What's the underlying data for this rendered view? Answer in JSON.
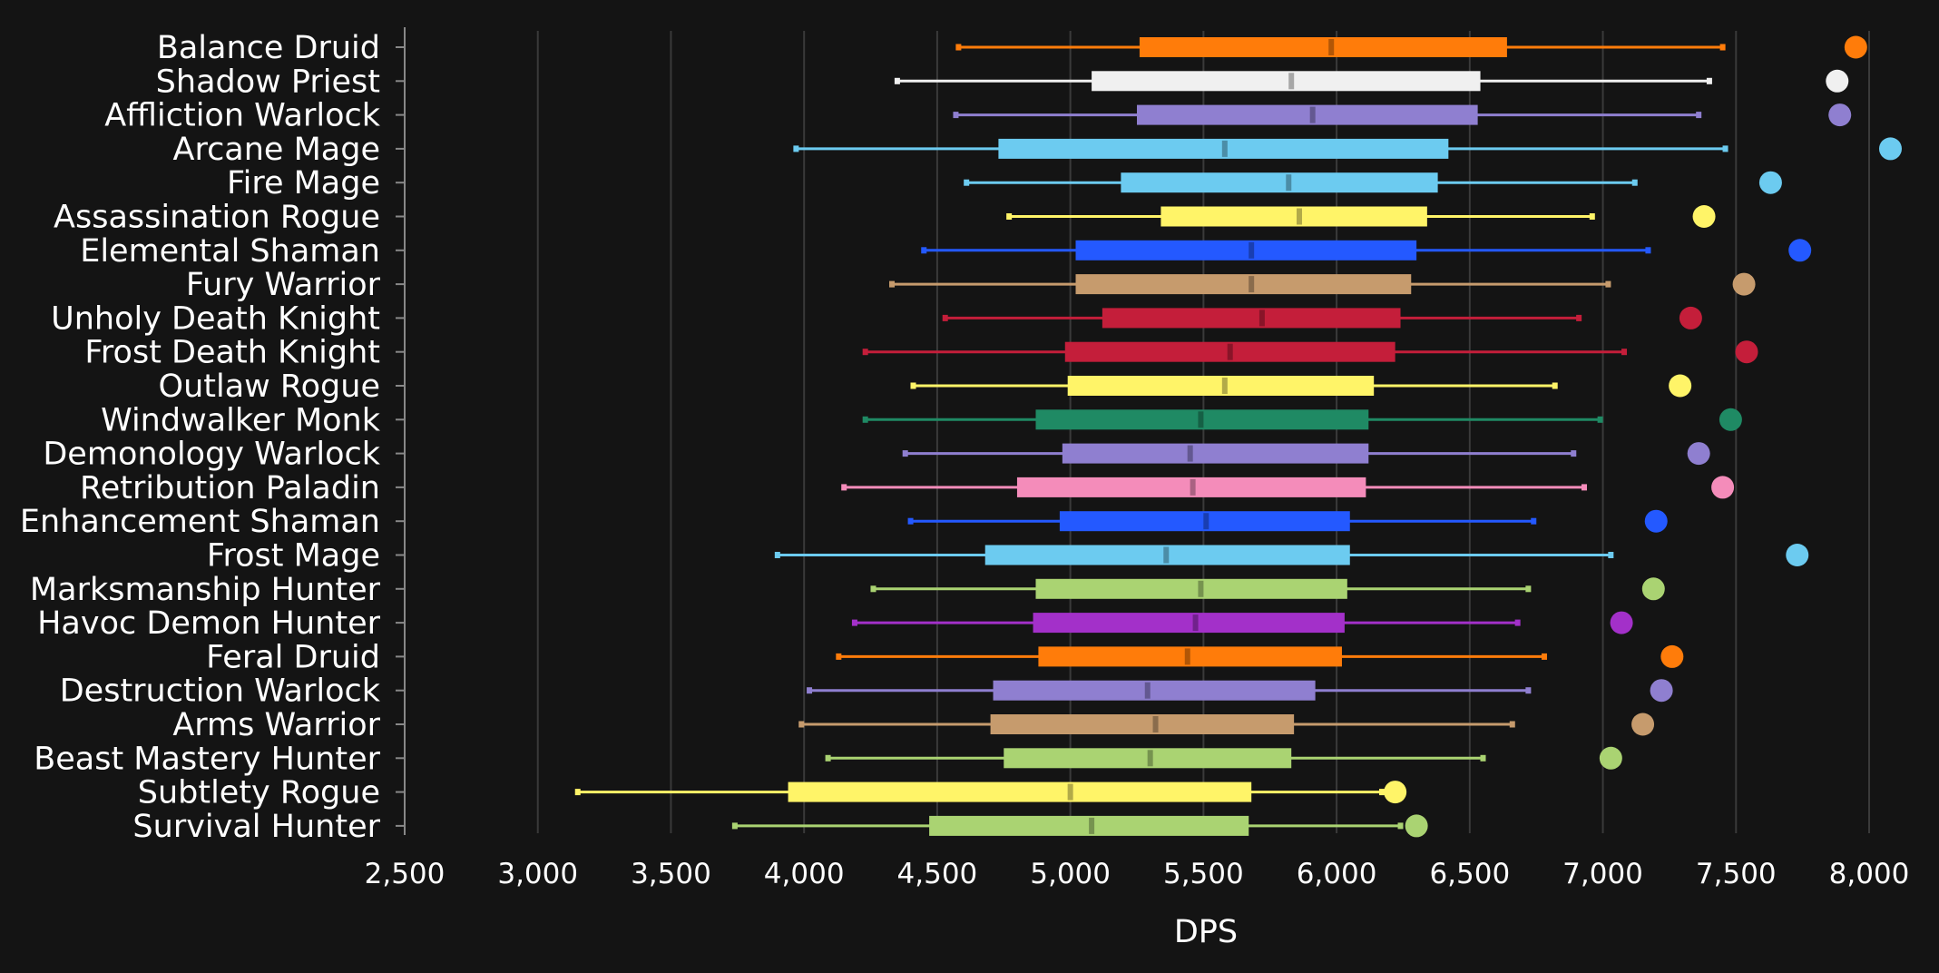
{
  "chart_data": {
    "type": "box",
    "xlabel": "DPS",
    "xlim": [
      2500,
      8000
    ],
    "xticks": [
      2500,
      3000,
      3500,
      4000,
      4500,
      5000,
      5500,
      6000,
      6500,
      7000,
      7500,
      8000
    ],
    "xtick_labels": [
      "2,500",
      "3,000",
      "3,500",
      "4,000",
      "4,500",
      "5,000",
      "5,500",
      "6,000",
      "6,500",
      "7,000",
      "7,500",
      "8,000"
    ],
    "grid": true,
    "series": [
      {
        "name": "Balance Druid",
        "color": "#ff7c0a",
        "min": 4580,
        "q1": 5260,
        "median": 5980,
        "q3": 6640,
        "max": 7450,
        "dot": 7950
      },
      {
        "name": "Shadow Priest",
        "color": "#f0f0f0",
        "min": 4350,
        "q1": 5080,
        "median": 5830,
        "q3": 6540,
        "max": 7400,
        "dot": 7880
      },
      {
        "name": "Affliction Warlock",
        "color": "#8f7fd0",
        "min": 4570,
        "q1": 5250,
        "median": 5910,
        "q3": 6530,
        "max": 7360,
        "dot": 7890
      },
      {
        "name": "Arcane Mage",
        "color": "#6ccbf0",
        "min": 3970,
        "q1": 4730,
        "median": 5580,
        "q3": 6420,
        "max": 7460,
        "dot": 8080
      },
      {
        "name": "Fire Mage",
        "color": "#6ccbf0",
        "min": 4610,
        "q1": 5190,
        "median": 5820,
        "q3": 6380,
        "max": 7120,
        "dot": 7630
      },
      {
        "name": "Assassination Rogue",
        "color": "#fff468",
        "min": 4770,
        "q1": 5340,
        "median": 5860,
        "q3": 6340,
        "max": 6960,
        "dot": 7380
      },
      {
        "name": "Elemental Shaman",
        "color": "#2459ff",
        "min": 4450,
        "q1": 5020,
        "median": 5680,
        "q3": 6300,
        "max": 7170,
        "dot": 7740
      },
      {
        "name": "Fury Warrior",
        "color": "#c69b6d",
        "min": 4330,
        "q1": 5020,
        "median": 5680,
        "q3": 6280,
        "max": 7020,
        "dot": 7530
      },
      {
        "name": "Unholy Death Knight",
        "color": "#c41e3a",
        "min": 4530,
        "q1": 5120,
        "median": 5720,
        "q3": 6240,
        "max": 6910,
        "dot": 7330
      },
      {
        "name": "Frost Death Knight",
        "color": "#c41e3a",
        "min": 4230,
        "q1": 4980,
        "median": 5600,
        "q3": 6220,
        "max": 7080,
        "dot": 7540
      },
      {
        "name": "Outlaw Rogue",
        "color": "#fff468",
        "min": 4410,
        "q1": 4990,
        "median": 5580,
        "q3": 6140,
        "max": 6820,
        "dot": 7290
      },
      {
        "name": "Windwalker Monk",
        "color": "#1f8a64",
        "min": 4230,
        "q1": 4870,
        "median": 5490,
        "q3": 6120,
        "max": 6990,
        "dot": 7480
      },
      {
        "name": "Demonology Warlock",
        "color": "#8f7fd0",
        "min": 4380,
        "q1": 4970,
        "median": 5450,
        "q3": 6120,
        "max": 6890,
        "dot": 7360
      },
      {
        "name": "Retribution Paladin",
        "color": "#f48cba",
        "min": 4150,
        "q1": 4800,
        "median": 5460,
        "q3": 6110,
        "max": 6930,
        "dot": 7450
      },
      {
        "name": "Enhancement Shaman",
        "color": "#2459ff",
        "min": 4400,
        "q1": 4960,
        "median": 5510,
        "q3": 6050,
        "max": 6740,
        "dot": 7200
      },
      {
        "name": "Frost Mage",
        "color": "#6ccbf0",
        "min": 3900,
        "q1": 4680,
        "median": 5360,
        "q3": 6050,
        "max": 7030,
        "dot": 7730
      },
      {
        "name": "Marksmanship Hunter",
        "color": "#aad372",
        "min": 4260,
        "q1": 4870,
        "median": 5490,
        "q3": 6040,
        "max": 6720,
        "dot": 7190
      },
      {
        "name": "Havoc Demon Hunter",
        "color": "#a330c9",
        "min": 4190,
        "q1": 4860,
        "median": 5470,
        "q3": 6030,
        "max": 6680,
        "dot": 7070
      },
      {
        "name": "Feral Druid",
        "color": "#ff7c0a",
        "min": 4130,
        "q1": 4880,
        "median": 5440,
        "q3": 6020,
        "max": 6780,
        "dot": 7260
      },
      {
        "name": "Destruction Warlock",
        "color": "#8f7fd0",
        "min": 4020,
        "q1": 4710,
        "median": 5290,
        "q3": 5920,
        "max": 6720,
        "dot": 7220
      },
      {
        "name": "Arms Warrior",
        "color": "#c69b6d",
        "min": 3990,
        "q1": 4700,
        "median": 5320,
        "q3": 5840,
        "max": 6660,
        "dot": 7150
      },
      {
        "name": "Beast Mastery Hunter",
        "color": "#aad372",
        "min": 4090,
        "q1": 4750,
        "median": 5300,
        "q3": 5830,
        "max": 6550,
        "dot": 7030
      },
      {
        "name": "Subtlety Rogue",
        "color": "#fff468",
        "min": 3150,
        "q1": 3940,
        "median": 5000,
        "q3": 5680,
        "max": 6170,
        "dot": 6220
      },
      {
        "name": "Survival Hunter",
        "color": "#aad372",
        "min": 3740,
        "q1": 4470,
        "median": 5080,
        "q3": 5670,
        "max": 6240,
        "dot": 6300
      }
    ]
  }
}
